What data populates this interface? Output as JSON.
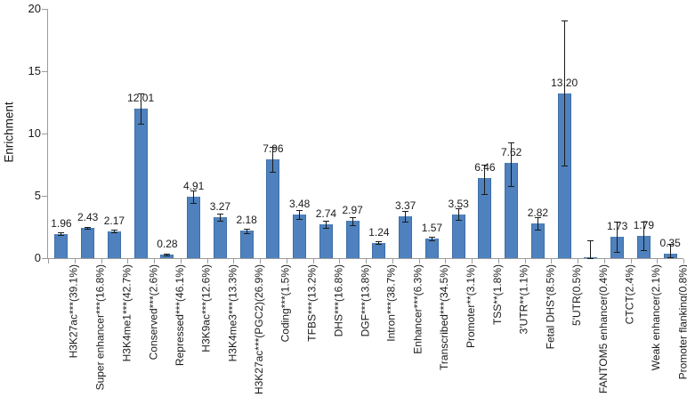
{
  "chart_data": {
    "type": "bar",
    "title": "",
    "xlabel": "",
    "ylabel": "Enrichment",
    "ylim": [
      0,
      20
    ],
    "yticks": [
      0,
      5,
      10,
      15,
      20
    ],
    "grid": false,
    "legend": null,
    "bar_color": "#4E81BD",
    "error_color": "#1a1a1a",
    "axis_color": "#9b9b9b",
    "categories": [
      "H3K27ac***(39.1%)",
      "Super enhancer***(16.8%)",
      "H3K4me1***(42.7%)",
      "Conserved***(2.6%)",
      "Repressed***(46.1%)",
      "H3K9ac***(12.6%)",
      "H3K4me3***(13.3%)",
      "H3K27ac***(PGC2)(26.9%)",
      "Coding***(1.5%)",
      "TFBS***(13.2%)",
      "DHS***(16.8%)",
      "DGF***(13.8%)",
      "Intron***(38.7%)",
      "Enhancer***(6.3%)",
      "Transcribed***(34.5%)",
      "Promoter**(3.1%)",
      "TSS**(1.8%)",
      "3'UTR**(1.1%)",
      "Fetal DHS*(8.5%)",
      "5'UTR(0.5%)",
      "FANTOM5 enhancer(0.4%)",
      "CTCT(2.4%)",
      "Weak enhancer(2.1%)",
      "Promoter flanking(0.8%)"
    ],
    "values": [
      1.96,
      2.43,
      2.17,
      12.01,
      0.28,
      4.91,
      3.27,
      2.18,
      7.96,
      3.48,
      2.74,
      2.97,
      1.24,
      3.37,
      1.57,
      3.53,
      6.46,
      7.62,
      2.82,
      13.2,
      0.05,
      1.73,
      1.79,
      0.35
    ],
    "value_labels": [
      "1.96",
      "2.43",
      "2.17",
      "12.01",
      "0.28",
      "4.91",
      "3.27",
      "2.18",
      "7.96",
      "3.48",
      "2.74",
      "2.97",
      "1.24",
      "3.37",
      "1.57",
      "3.53",
      "6.46",
      "7.62",
      "2.82",
      "13.20",
      "",
      "1.73",
      "1.79",
      "0.35"
    ],
    "errors_plus": [
      0.08,
      0.1,
      0.1,
      1.2,
      0.07,
      0.55,
      0.3,
      0.15,
      0.95,
      0.35,
      0.28,
      0.33,
      0.1,
      0.42,
      0.13,
      0.48,
      1.05,
      1.7,
      0.5,
      5.85,
      1.35,
      1.2,
      1.15,
      0.8
    ],
    "errors_minus": [
      0.08,
      0.1,
      0.1,
      1.25,
      0.07,
      0.45,
      0.25,
      0.15,
      1.0,
      0.35,
      0.28,
      0.33,
      0.1,
      0.42,
      0.13,
      0.48,
      1.3,
      1.8,
      0.5,
      5.8,
      0.03,
      1.2,
      1.15,
      0.3
    ]
  }
}
